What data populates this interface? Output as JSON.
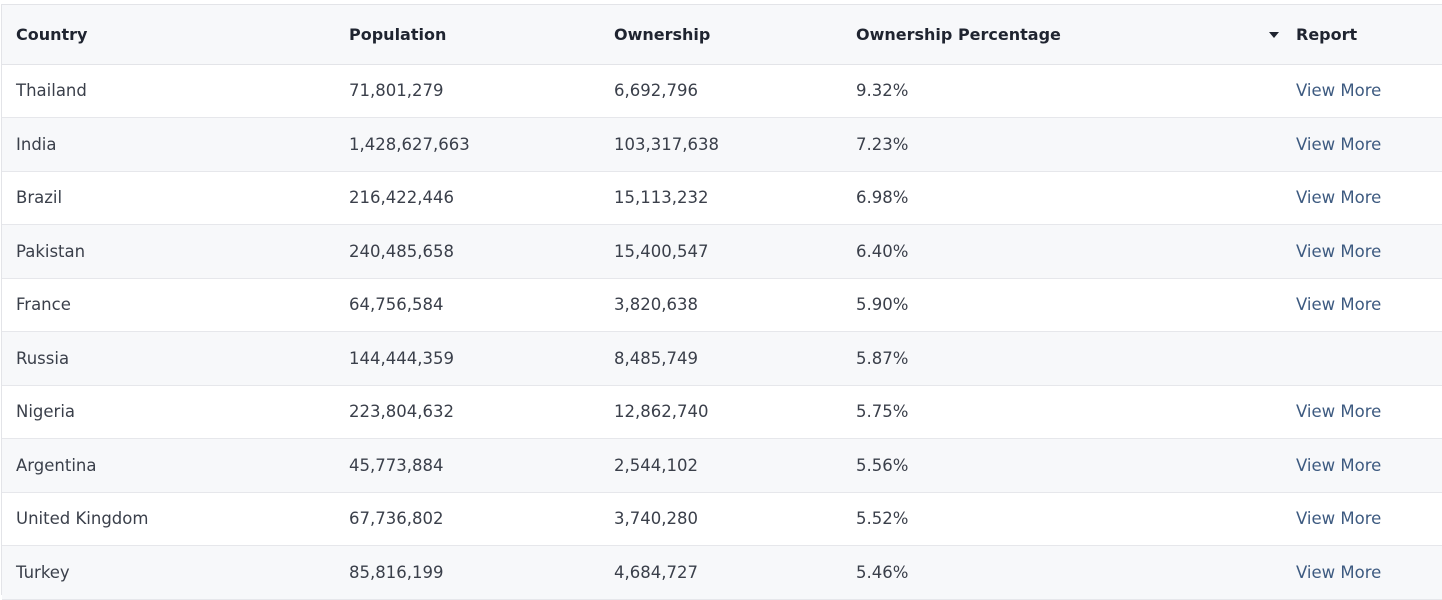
{
  "columns": {
    "country": "Country",
    "population": "Population",
    "ownership": "Ownership",
    "ownership_percentage": "Ownership Percentage",
    "report": "Report"
  },
  "sort": {
    "icon": "sort-desc-icon"
  },
  "rows": [
    {
      "country": "Thailand",
      "population": "71,801,279",
      "ownership": "6,692,796",
      "percentage": "9.32%",
      "report": "View More"
    },
    {
      "country": "India",
      "population": "1,428,627,663",
      "ownership": "103,317,638",
      "percentage": "7.23%",
      "report": "View More"
    },
    {
      "country": "Brazil",
      "population": "216,422,446",
      "ownership": "15,113,232",
      "percentage": "6.98%",
      "report": "View More"
    },
    {
      "country": "Pakistan",
      "population": "240,485,658",
      "ownership": "15,400,547",
      "percentage": "6.40%",
      "report": "View More"
    },
    {
      "country": "France",
      "population": "64,756,584",
      "ownership": "3,820,638",
      "percentage": "5.90%",
      "report": "View More"
    },
    {
      "country": "Russia",
      "population": "144,444,359",
      "ownership": "8,485,749",
      "percentage": "5.87%",
      "report": ""
    },
    {
      "country": "Nigeria",
      "population": "223,804,632",
      "ownership": "12,862,740",
      "percentage": "5.75%",
      "report": "View More"
    },
    {
      "country": "Argentina",
      "population": "45,773,884",
      "ownership": "2,544,102",
      "percentage": "5.56%",
      "report": "View More"
    },
    {
      "country": "United Kingdom",
      "population": "67,736,802",
      "ownership": "3,740,280",
      "percentage": "5.52%",
      "report": "View More"
    },
    {
      "country": "Turkey",
      "population": "85,816,199",
      "ownership": "4,684,727",
      "percentage": "5.46%",
      "report": "View More"
    }
  ]
}
